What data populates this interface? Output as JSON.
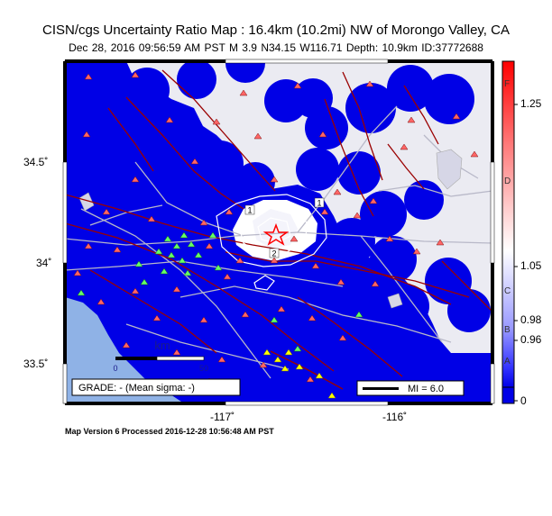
{
  "map": {
    "title": "CISN/cgs Uncertainty Ratio Map : 16.4km (10.2mi) NW of Morongo Valley, CA",
    "subtitle": "Dec 28, 2016 09:56:59 AM PST   M 3.9   N34.15 W116.71   Depth: 10.9km   ID:37772688",
    "footer": "Map Version 6 Processed 2016-12-28 10:56:48 AM PST",
    "grade_label": "GRADE: - (Mean sigma: -)",
    "scale_label": "MI = 6.0",
    "km_label": "km",
    "km_ticks": [
      "0",
      "50"
    ],
    "lat_labels": [
      "34.5˚",
      "34˚",
      "33.5˚"
    ],
    "lon_labels": [
      "-117˚",
      "-116˚"
    ],
    "contour_labels": [
      "1",
      "1",
      "2"
    ],
    "colors": {
      "ocean": "#8fb2e6",
      "uncertainty_high": "#0000e6",
      "low": "#ebebf2",
      "fault": "#9a0000",
      "station_red": "#ff6666",
      "station_green": "#66ff66",
      "station_yellow": "#ffff00",
      "epicenter": "#ff0000"
    }
  },
  "colorbar": {
    "tick_labels": [
      "1.25",
      "1.05",
      "0.98",
      "0.96",
      "0"
    ],
    "grade_letters": [
      "F",
      "D",
      "C",
      "B",
      "A"
    ]
  }
}
